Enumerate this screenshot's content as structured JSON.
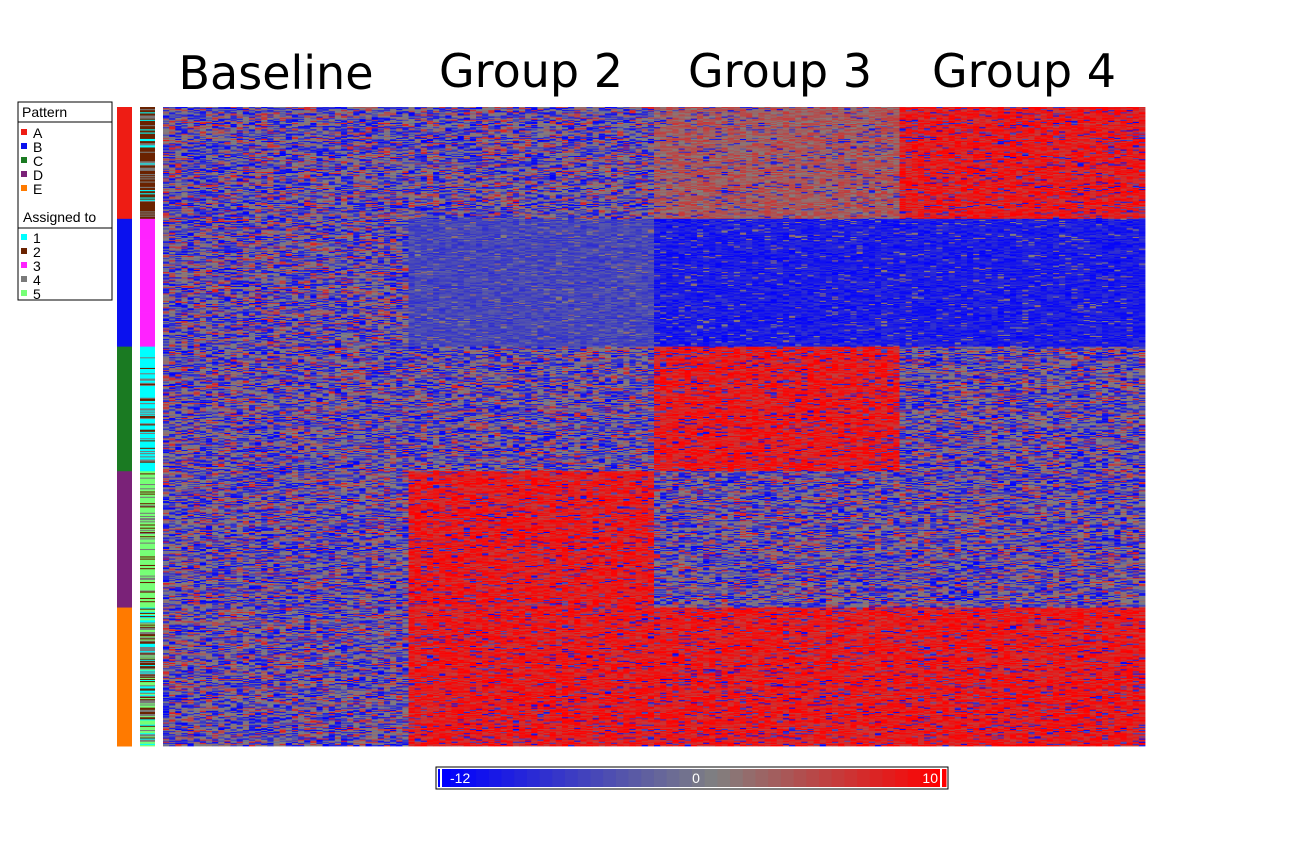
{
  "chart_data": {
    "type": "heatmap",
    "columns": [
      "Baseline",
      "Group 2",
      "Group 3",
      "Group 4"
    ],
    "row_blocks": [
      {
        "pattern": "A",
        "pattern_color": "#ee1c14",
        "rows": 105,
        "means": [
          0,
          0,
          3,
          8
        ]
      },
      {
        "pattern": "B",
        "pattern_color": "#0a11ee",
        "rows": 120,
        "means": [
          0,
          -8,
          -12,
          -12
        ]
      },
      {
        "pattern": "C",
        "pattern_color": "#1a7a22",
        "rows": 117,
        "means": [
          0,
          0,
          8,
          0
        ]
      },
      {
        "pattern": "D",
        "pattern_color": "#7a2278",
        "rows": 128,
        "means": [
          0,
          8,
          0,
          0
        ]
      },
      {
        "pattern": "E",
        "pattern_color": "#ff7a00",
        "rows": 130,
        "means": [
          0,
          8,
          8,
          8
        ]
      }
    ],
    "legend": {
      "pattern_title": "Pattern",
      "patterns": [
        {
          "label": "A",
          "color": "#ee1c14"
        },
        {
          "label": "B",
          "color": "#0a11ee"
        },
        {
          "label": "C",
          "color": "#1a7a22"
        },
        {
          "label": "D",
          "color": "#7a2278"
        },
        {
          "label": "E",
          "color": "#ff7a00"
        }
      ],
      "assigned_title": "Assigned to",
      "clusters": [
        {
          "label": "1",
          "color": "#00ffff"
        },
        {
          "label": "2",
          "color": "#6a2200"
        },
        {
          "label": "3",
          "color": "#ff22ff"
        },
        {
          "label": "4",
          "color": "#7a7a7a"
        },
        {
          "label": "5",
          "color": "#77ff77"
        }
      ]
    },
    "color_scale": {
      "min": -12,
      "mid": 0,
      "max": 10,
      "min_label": "-12",
      "mid_label": "0",
      "max_label": "10",
      "low_color": "#0000ff",
      "mid_color": "#808080",
      "high_color": "#ff0000"
    }
  }
}
